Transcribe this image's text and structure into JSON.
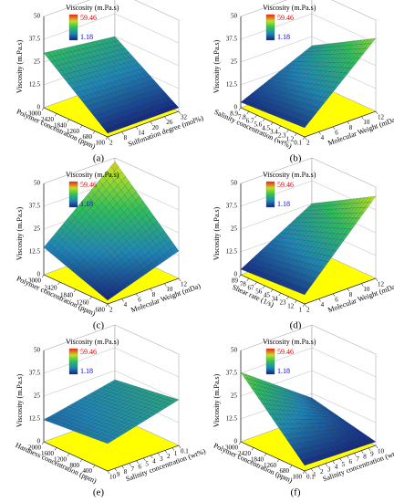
{
  "chart_data": [
    {
      "type": "surface3d",
      "panel_label": "(a)",
      "zlabel": "Viscosity (m.Pa.s)",
      "xlabel": "Polymer concentration (ppm)",
      "ylabel": "Sulfonation degree (mol%)",
      "xlim": [
        100,
        3000
      ],
      "xticks": [
        100,
        680,
        1260,
        1840,
        2420,
        3000
      ],
      "ylim": [
        2,
        32
      ],
      "yticks": [
        2,
        8,
        14,
        20,
        26,
        32
      ],
      "zlim": [
        0,
        50
      ],
      "zticks": [
        0,
        12.5,
        25,
        37.5,
        50
      ],
      "surface": [
        [
          2,
          2
        ],
        [
          30,
          25
        ]
      ],
      "colorbar": {
        "title": "Viscosity (m.Pa.s)",
        "max": 59.46,
        "min": 1.18
      }
    },
    {
      "type": "surface3d",
      "panel_label": "(b)",
      "zlabel": "Viscosity (m.Pa.s)",
      "xlabel": "Salinity concentration (wt%)",
      "ylabel": "Molecular Weight (mDa)",
      "xlim": [
        0.1,
        8.9
      ],
      "xticks": [
        0.1,
        1.2,
        2.3,
        3.4,
        4.5,
        5.6,
        6.7,
        7.8,
        8.9
      ],
      "ylim": [
        2,
        12
      ],
      "yticks": [
        2,
        4,
        6,
        8,
        10,
        12
      ],
      "zlim": [
        0,
        50
      ],
      "zticks": [
        0,
        12.5,
        25,
        37.5,
        50
      ],
      "surface": [
        [
          5,
          40
        ],
        [
          3,
          20
        ]
      ],
      "colorbar": {
        "title": "Viscosity (m.Pa.s)",
        "max": 59.46,
        "min": 1.18
      }
    },
    {
      "type": "surface3d",
      "panel_label": "(c)",
      "zlabel": "Viscosity (m.Pa.s)",
      "xlabel": "Polymer concentration (ppm)",
      "ylabel": "Molecular Weight (mDa)",
      "xlim": [
        680,
        3000
      ],
      "xticks": [
        680,
        1260,
        1840,
        2420,
        3000
      ],
      "ylim": [
        2,
        12
      ],
      "yticks": [
        2,
        4,
        6,
        8,
        10,
        12
      ],
      "zlim": [
        0,
        50
      ],
      "zticks": [
        0,
        12.5,
        25,
        37.5,
        50
      ],
      "surface": [
        [
          2,
          15
        ],
        [
          15,
          48
        ]
      ],
      "colorbar": {
        "title": "Viscosity (m.Pa.s)",
        "max": 59.46,
        "min": 1.18
      }
    },
    {
      "type": "surface3d",
      "panel_label": "(d)",
      "zlabel": "Viscosity (m.Pa.s)",
      "xlabel": "Shear rate (1/s)",
      "ylabel": "Molecular Weight (mDa)",
      "xlim": [
        1,
        89
      ],
      "xticks": [
        1,
        12,
        23,
        34,
        45,
        56,
        67,
        78,
        89
      ],
      "ylim": [
        2,
        12
      ],
      "yticks": [
        2,
        4,
        6,
        8,
        10,
        12
      ],
      "zlim": [
        0,
        50
      ],
      "zticks": [
        0,
        12.5,
        25,
        37.5,
        50
      ],
      "surface": [
        [
          5,
          45
        ],
        [
          3,
          25
        ]
      ],
      "colorbar": {
        "title": "Viscosity (m.Pa.s)",
        "max": 59.46,
        "min": 1.18
      }
    },
    {
      "type": "surface3d",
      "panel_label": "(e)",
      "zlabel": "Viscosity (m.Pa.s)",
      "xlabel": "Hardness concentration (ppm)",
      "ylabel": "Salinity concentration (wt%)",
      "xlim": [
        0,
        2000
      ],
      "xticks": [
        400,
        800,
        1200,
        1600,
        2000
      ],
      "ylim": [
        10,
        0.1
      ],
      "yticks": [
        10,
        9,
        8,
        7,
        6,
        5,
        4,
        3,
        2,
        1,
        0.1
      ],
      "zlim": [
        0,
        50
      ],
      "zticks": [
        0,
        12.5,
        25,
        37.5,
        50
      ],
      "surface": [
        [
          15,
          25
        ],
        [
          12,
          20
        ]
      ],
      "colorbar": {
        "title": "Viscosity (m.Pa.s)",
        "max": 59.46,
        "min": 1.18
      }
    },
    {
      "type": "surface3d",
      "panel_label": "(f)",
      "zlabel": "Viscosity (m.Pa.s)",
      "xlabel": "Polymer concentration (ppm)",
      "ylabel": "Salinity concentration (wt%)",
      "xlim": [
        100,
        3000
      ],
      "xticks": [
        100,
        680,
        1260,
        1840,
        2420,
        3000
      ],
      "ylim": [
        0.1,
        10
      ],
      "yticks": [
        0.1,
        1,
        2,
        3,
        4,
        5,
        6,
        7,
        8,
        9,
        10
      ],
      "zlim": [
        0,
        50
      ],
      "zticks": [
        0,
        12.5,
        25,
        37.5,
        50
      ],
      "surface": [
        [
          3,
          2
        ],
        [
          38,
          10
        ]
      ],
      "colorbar": {
        "title": "Viscosity (m.Pa.s)",
        "max": 59.46,
        "min": 1.18
      }
    }
  ],
  "colormap": [
    "#14207e",
    "#1f86b4",
    "#2fbf5a",
    "#bfe020",
    "#ff1a1a"
  ],
  "floor_color": "#ffff00"
}
